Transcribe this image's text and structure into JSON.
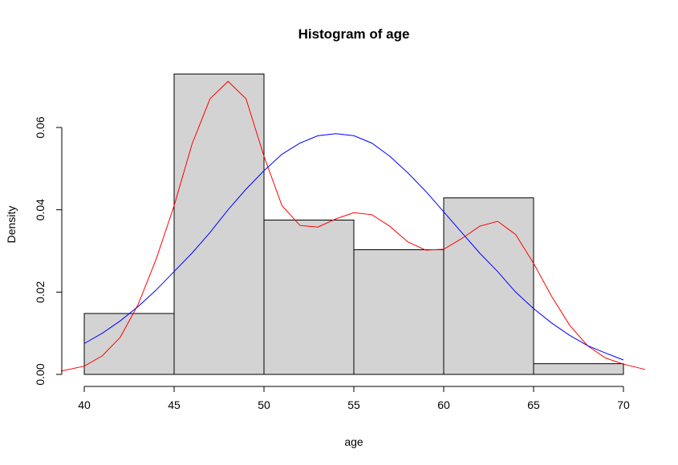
{
  "chart_data": {
    "type": "bar",
    "title": "Histogram of age",
    "xlabel": "age",
    "ylabel": "Density",
    "xlim": [
      39,
      71
    ],
    "ylim": [
      0,
      0.075
    ],
    "x_ticks": [
      40,
      45,
      50,
      55,
      60,
      65,
      70
    ],
    "y_ticks": [
      0.0,
      0.02,
      0.04,
      0.06
    ],
    "y_tick_labels": [
      "0.00",
      "0.02",
      "0.04",
      "0.06"
    ],
    "grid": false,
    "bins": [
      {
        "start": 40,
        "end": 45,
        "density": 0.0148
      },
      {
        "start": 45,
        "end": 50,
        "density": 0.073
      },
      {
        "start": 50,
        "end": 55,
        "density": 0.0375
      },
      {
        "start": 55,
        "end": 60,
        "density": 0.0303
      },
      {
        "start": 60,
        "end": 65,
        "density": 0.0429
      },
      {
        "start": 65,
        "end": 70,
        "density": 0.0026
      }
    ],
    "series": [
      {
        "color": "#ff0000",
        "x": [
          38.7,
          40,
          41,
          42,
          43,
          44,
          45,
          46,
          47,
          48,
          49,
          50,
          51,
          52,
          53,
          54,
          55,
          56,
          57,
          58,
          59,
          60,
          61,
          62,
          63,
          64,
          65,
          66,
          67,
          68,
          69,
          70,
          71.2
        ],
        "y": [
          0.0008,
          0.002,
          0.0045,
          0.009,
          0.017,
          0.028,
          0.041,
          0.056,
          0.067,
          0.0712,
          0.067,
          0.053,
          0.041,
          0.0362,
          0.0358,
          0.0378,
          0.0393,
          0.0388,
          0.036,
          0.0322,
          0.0302,
          0.0304,
          0.033,
          0.036,
          0.0372,
          0.034,
          0.027,
          0.019,
          0.012,
          0.007,
          0.004,
          0.0025,
          0.0012
        ]
      },
      {
        "color": "#0000ff",
        "x": [
          40,
          41,
          42,
          43,
          44,
          45,
          46,
          47,
          48,
          49,
          50,
          51,
          52,
          53,
          54,
          55,
          56,
          57,
          58,
          59,
          60,
          61,
          62,
          63,
          64,
          65,
          66,
          67,
          68,
          69,
          70
        ],
        "y": [
          0.0075,
          0.01,
          0.013,
          0.0165,
          0.0205,
          0.025,
          0.0295,
          0.0345,
          0.04,
          0.045,
          0.0495,
          0.0535,
          0.0562,
          0.058,
          0.0585,
          0.058,
          0.0562,
          0.053,
          0.049,
          0.0445,
          0.0395,
          0.0345,
          0.0295,
          0.025,
          0.02,
          0.016,
          0.0125,
          0.0095,
          0.007,
          0.0052,
          0.0035
        ]
      }
    ]
  }
}
